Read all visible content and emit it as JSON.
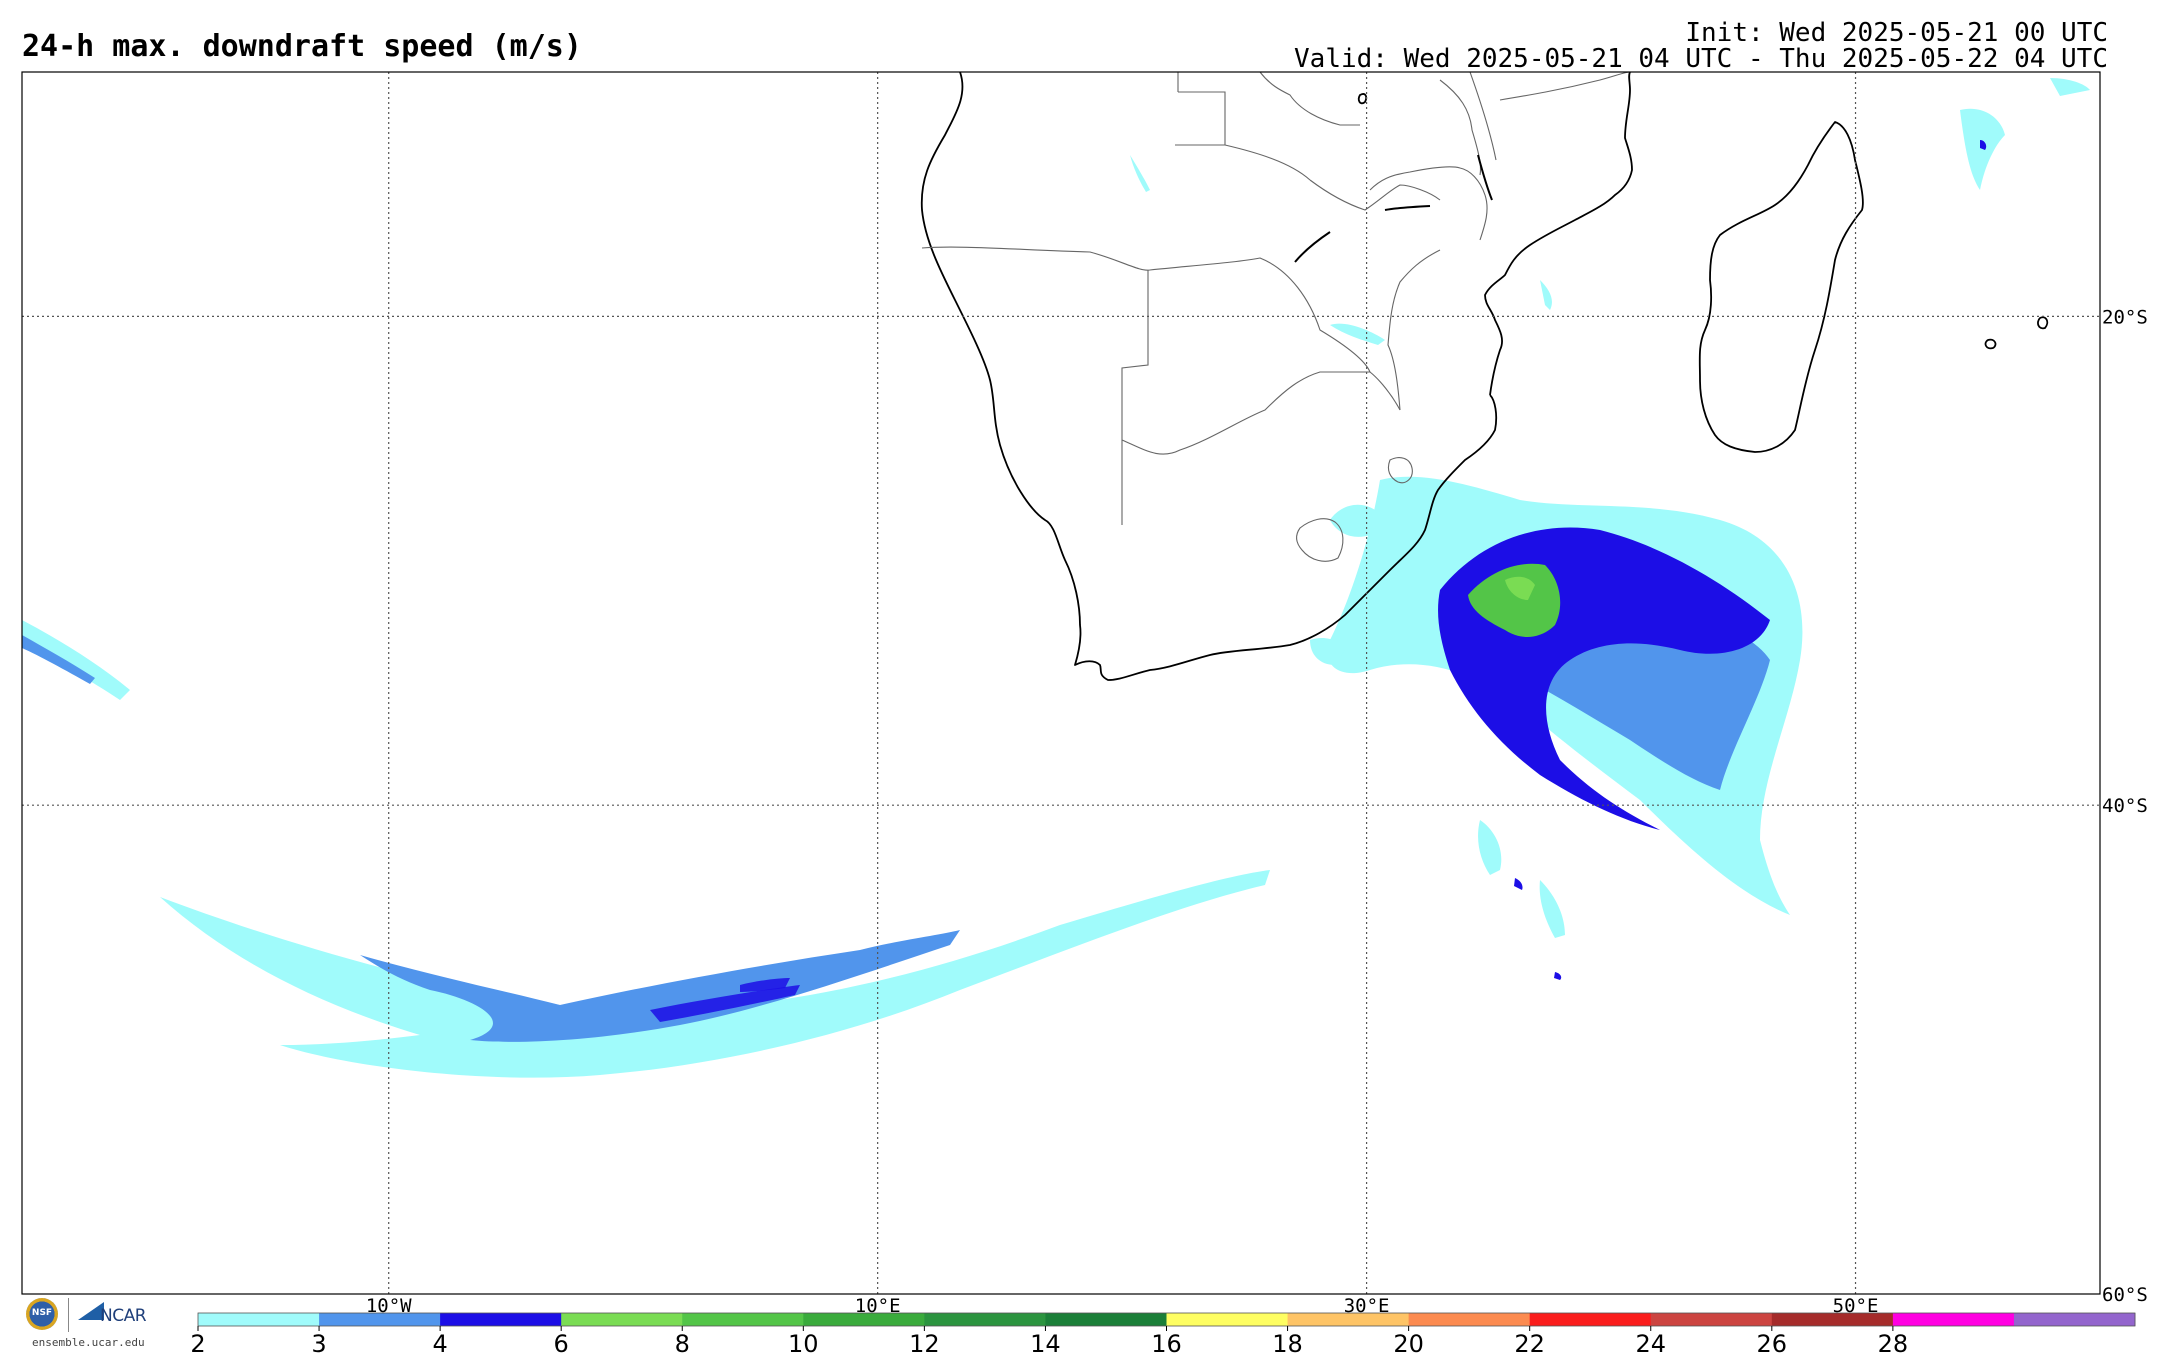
{
  "header": {
    "title": "24-h max. downdraft speed (m/s)",
    "init": "Init: Wed 2025-05-21 00 UTC",
    "valid": "Valid: Wed 2025-05-21 04 UTC - Thu 2025-05-22 04 UTC"
  },
  "map": {
    "projection": "cylindrical equidistant",
    "lon_range": [
      -25,
      60
    ],
    "lat_range": [
      -60,
      -10
    ],
    "lon_gridlines": [
      -10,
      10,
      30,
      50
    ],
    "lat_gridlines": [
      -20,
      -40,
      -60
    ],
    "lon_labels": [
      "10°W",
      "10°E",
      "30°E",
      "50°E"
    ],
    "lat_labels": [
      "20°S",
      "40°S",
      "60°S"
    ]
  },
  "colorbar": {
    "ticks": [
      "2",
      "3",
      "4",
      "6",
      "8",
      "10",
      "12",
      "14",
      "16",
      "18",
      "20",
      "22",
      "24",
      "26",
      "28"
    ],
    "colors": [
      "#a0fbfb",
      "#5195ec",
      "#1c0ee6",
      "#7adc53",
      "#53c548",
      "#3aab3c",
      "#2b943f",
      "#1b7f38",
      "#fefe62",
      "#fec466",
      "#fc8b50",
      "#fa1d1c",
      "#cc4440",
      "#a52b2a",
      "#ff00e1",
      "#9365cd"
    ]
  },
  "logos": {
    "nsf_text": "NSF",
    "ncar_text": "NCAR",
    "url": "ensemble.ucar.edu"
  }
}
